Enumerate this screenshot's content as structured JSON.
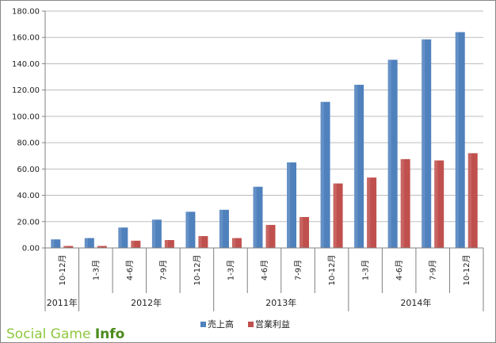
{
  "chart_data": {
    "type": "bar",
    "categories": [
      "10-12月",
      "1-3月",
      "4-6月",
      "7-9月",
      "10-12月",
      "1-3月",
      "4-6月",
      "7-9月",
      "10-12月",
      "1-3月",
      "4-6月",
      "7-9月",
      "10-12月"
    ],
    "year_groups": [
      {
        "label": "2011年",
        "count": 1
      },
      {
        "label": "2012年",
        "count": 4
      },
      {
        "label": "2013年",
        "count": 4
      },
      {
        "label": "2014年",
        "count": 4
      }
    ],
    "series": [
      {
        "name": "売上高",
        "color": "#4f81bd",
        "values": [
          6.5,
          7.5,
          15.5,
          21.5,
          27.5,
          29.0,
          46.5,
          65.0,
          111.0,
          124.0,
          143.0,
          158.5,
          164.0
        ]
      },
      {
        "name": "営業利益",
        "color": "#c0504d",
        "values": [
          1.5,
          1.5,
          5.5,
          6.0,
          9.0,
          7.5,
          17.5,
          23.5,
          49.0,
          53.5,
          67.5,
          66.5,
          72.0
        ]
      }
    ],
    "yticks": [
      "0.00",
      "20.00",
      "40.00",
      "60.00",
      "80.00",
      "100.00",
      "120.00",
      "140.00",
      "160.00",
      "180.00"
    ],
    "ylim": [
      0,
      180
    ],
    "grid": true,
    "legend_position": "bottom-center"
  },
  "watermark": {
    "part1": "Social Game ",
    "part2": "Info"
  }
}
